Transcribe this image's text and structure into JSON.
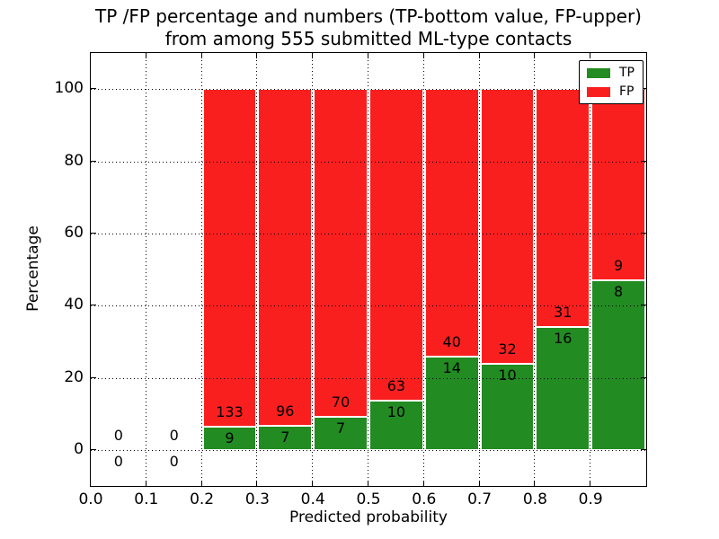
{
  "title": {
    "line1": "TP /FP percentage and numbers (TP-bottom value, FP-upper)",
    "line2": "from among 555 submitted ML-type contacts"
  },
  "axes": {
    "xlabel": "Predicted probability",
    "ylabel": "Percentage"
  },
  "legend": {
    "items": [
      {
        "label": "TP",
        "color": "#228b22"
      },
      {
        "label": "FP",
        "color": "#fa1f1f"
      }
    ]
  },
  "chart_data": {
    "type": "bar",
    "stacked": true,
    "title": "TP /FP percentage and numbers (TP-bottom value, FP-upper)\nfrom among 555 submitted ML-type contacts",
    "xlabel": "Predicted probability",
    "ylabel": "Percentage",
    "xlim": [
      0.0,
      1.0
    ],
    "ylim": [
      -10,
      110
    ],
    "grid": true,
    "grid_style": "dotted",
    "legend_position": "upper right",
    "total_submitted": 555,
    "colors": {
      "tp": "#228b22",
      "fp": "#fa1f1f"
    },
    "series_names": [
      "TP",
      "FP"
    ],
    "xticks": [
      {
        "value": 0.0,
        "label": "0.0"
      },
      {
        "value": 0.1,
        "label": "0.1"
      },
      {
        "value": 0.2,
        "label": "0.2"
      },
      {
        "value": 0.3,
        "label": "0.3"
      },
      {
        "value": 0.4,
        "label": "0.4"
      },
      {
        "value": 0.5,
        "label": "0.5"
      },
      {
        "value": 0.6,
        "label": "0.6"
      },
      {
        "value": 0.7,
        "label": "0.7"
      },
      {
        "value": 0.8,
        "label": "0.8"
      },
      {
        "value": 0.9,
        "label": "0.9"
      }
    ],
    "yticks": [
      {
        "value": 0,
        "label": "0"
      },
      {
        "value": 20,
        "label": "20"
      },
      {
        "value": 40,
        "label": "40"
      },
      {
        "value": 60,
        "label": "60"
      },
      {
        "value": 80,
        "label": "80"
      },
      {
        "value": 100,
        "label": "100"
      }
    ],
    "bins": [
      {
        "x0": 0.0,
        "x1": 0.1,
        "tp": 0,
        "fp": 0,
        "tp_pct": 0,
        "fp_pct": 0
      },
      {
        "x0": 0.1,
        "x1": 0.2,
        "tp": 0,
        "fp": 0,
        "tp_pct": 0,
        "fp_pct": 0
      },
      {
        "x0": 0.2,
        "x1": 0.3,
        "tp": 9,
        "fp": 133,
        "tp_pct": 6.34,
        "fp_pct": 93.66
      },
      {
        "x0": 0.3,
        "x1": 0.4,
        "tp": 7,
        "fp": 96,
        "tp_pct": 6.8,
        "fp_pct": 93.2
      },
      {
        "x0": 0.4,
        "x1": 0.5,
        "tp": 7,
        "fp": 70,
        "tp_pct": 9.09,
        "fp_pct": 90.91
      },
      {
        "x0": 0.5,
        "x1": 0.6,
        "tp": 10,
        "fp": 63,
        "tp_pct": 13.7,
        "fp_pct": 86.3
      },
      {
        "x0": 0.6,
        "x1": 0.7,
        "tp": 14,
        "fp": 40,
        "tp_pct": 25.93,
        "fp_pct": 74.07
      },
      {
        "x0": 0.7,
        "x1": 0.8,
        "tp": 10,
        "fp": 32,
        "tp_pct": 23.81,
        "fp_pct": 76.19
      },
      {
        "x0": 0.8,
        "x1": 0.9,
        "tp": 16,
        "fp": 31,
        "tp_pct": 34.04,
        "fp_pct": 65.96
      },
      {
        "x0": 0.9,
        "x1": 1.0,
        "tp": 8,
        "fp": 9,
        "tp_pct": 47.06,
        "fp_pct": 52.94
      }
    ]
  }
}
